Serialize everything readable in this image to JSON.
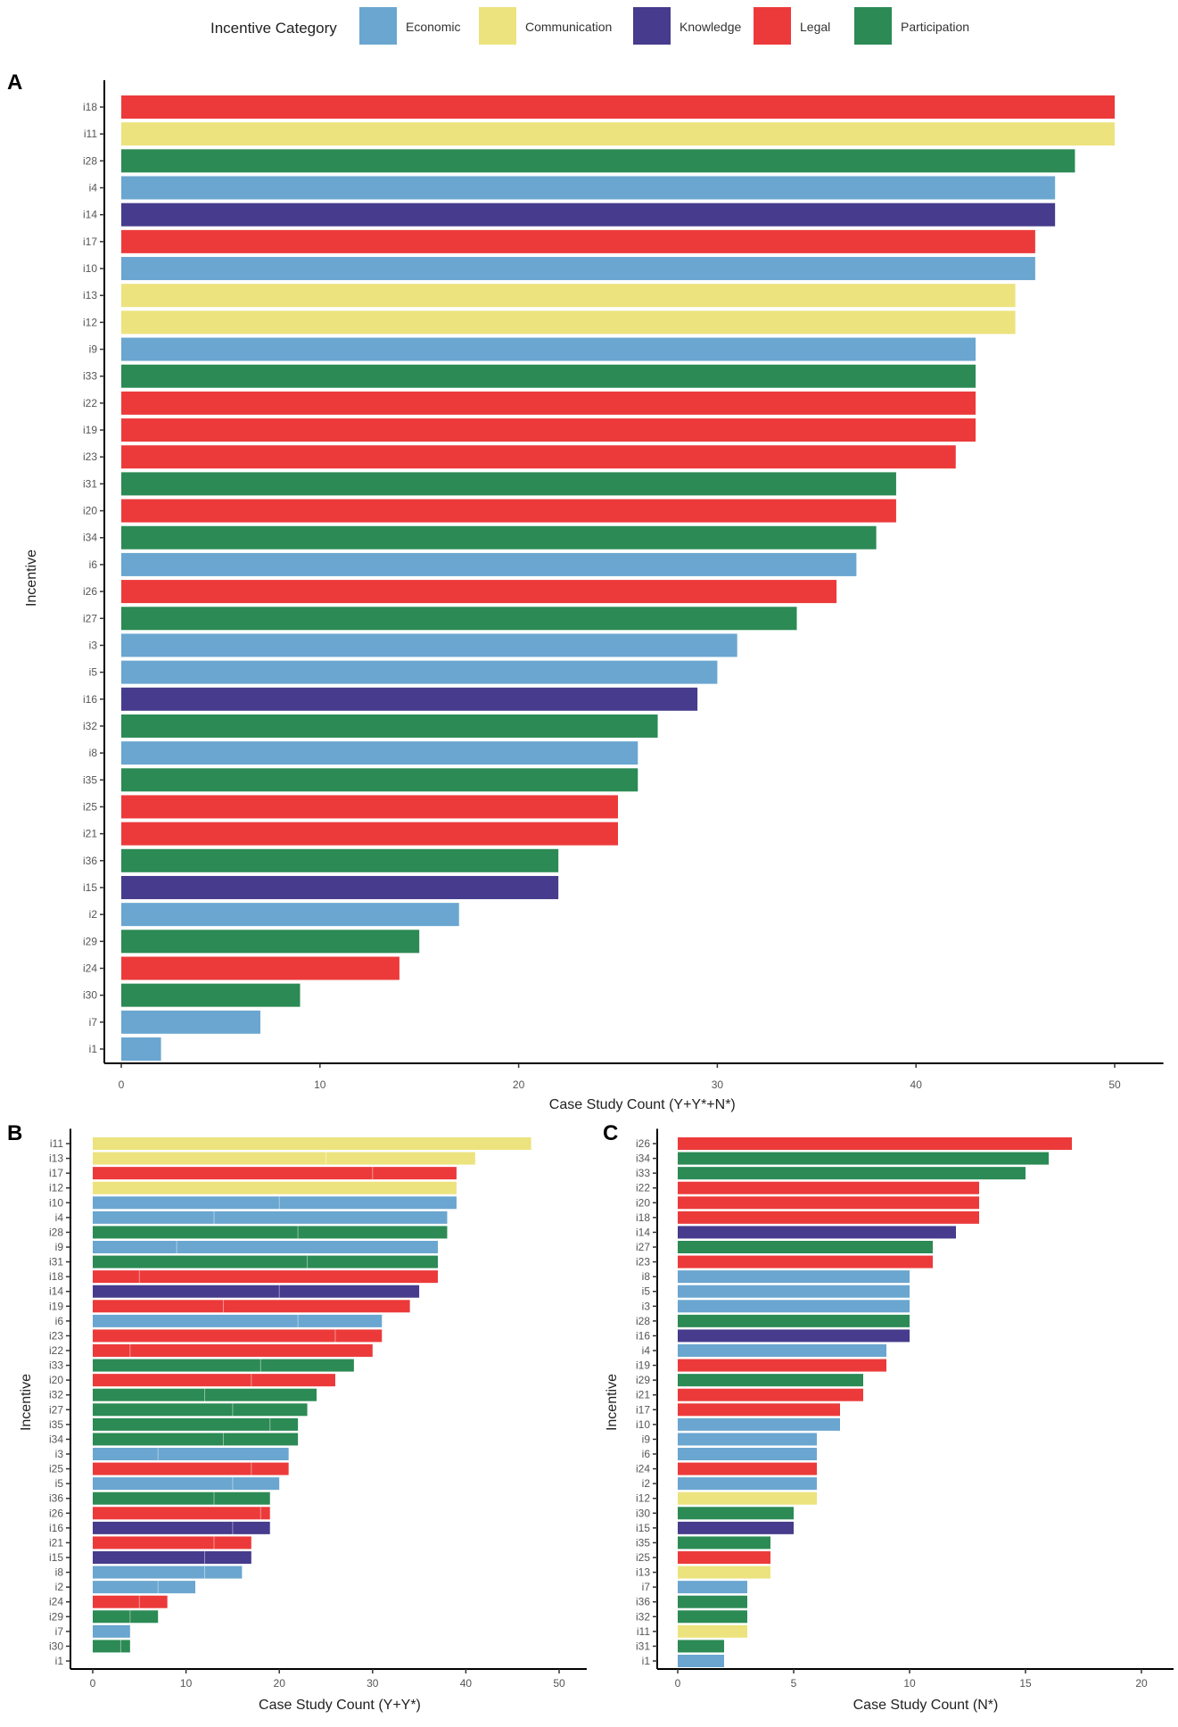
{
  "legend": {
    "title": "Incentive Category",
    "items": [
      {
        "label": "Economic",
        "color": "#6aa6d0"
      },
      {
        "label": "Communication",
        "color": "#ece37e"
      },
      {
        "label": "Knowledge",
        "color": "#463b8c"
      },
      {
        "label": "Legal",
        "color": "#ec3a3a"
      },
      {
        "label": "Participation",
        "color": "#2c8a55"
      }
    ]
  },
  "category_of": {
    "i1": "Economic",
    "i2": "Economic",
    "i3": "Economic",
    "i4": "Economic",
    "i5": "Economic",
    "i6": "Economic",
    "i7": "Economic",
    "i8": "Economic",
    "i9": "Economic",
    "i10": "Economic",
    "i11": "Communication",
    "i12": "Communication",
    "i13": "Communication",
    "i14": "Knowledge",
    "i15": "Knowledge",
    "i16": "Knowledge",
    "i17": "Legal",
    "i18": "Legal",
    "i19": "Legal",
    "i20": "Legal",
    "i21": "Legal",
    "i22": "Legal",
    "i23": "Legal",
    "i24": "Legal",
    "i25": "Legal",
    "i26": "Legal",
    "i27": "Participation",
    "i28": "Participation",
    "i29": "Participation",
    "i30": "Participation",
    "i31": "Participation",
    "i32": "Participation",
    "i33": "Participation",
    "i34": "Participation",
    "i35": "Participation",
    "i36": "Participation"
  },
  "chart_data": [
    {
      "panel": "A",
      "type": "bar",
      "orientation": "horizontal",
      "xlabel": "Case Study Count (Y+Y*+N*)",
      "ylabel": "Incentive",
      "xlim": [
        0,
        52
      ],
      "xticks": [
        0,
        10,
        20,
        30,
        40,
        50
      ],
      "categories": [
        "i18",
        "i11",
        "i28",
        "i4",
        "i14",
        "i17",
        "i10",
        "i13",
        "i12",
        "i9",
        "i33",
        "i22",
        "i19",
        "i23",
        "i31",
        "i20",
        "i34",
        "i6",
        "i26",
        "i27",
        "i3",
        "i5",
        "i16",
        "i32",
        "i8",
        "i35",
        "i25",
        "i21",
        "i36",
        "i15",
        "i2",
        "i29",
        "i24",
        "i30",
        "i7",
        "i1"
      ],
      "values": [
        50,
        50,
        48,
        47,
        47,
        46,
        46,
        45,
        45,
        43,
        43,
        43,
        43,
        42,
        39,
        39,
        38,
        37,
        36,
        34,
        31,
        30,
        29,
        27,
        26,
        26,
        25,
        25,
        22,
        22,
        17,
        15,
        14,
        9,
        7,
        2
      ]
    },
    {
      "panel": "B",
      "type": "bar",
      "orientation": "horizontal",
      "xlabel": "Case Study Count (Y+Y*)",
      "ylabel": "Incentive",
      "xlim": [
        0,
        52
      ],
      "xticks": [
        0,
        10,
        20,
        30,
        40,
        50
      ],
      "categories": [
        "i11",
        "i13",
        "i17",
        "i12",
        "i10",
        "i4",
        "i28",
        "i9",
        "i31",
        "i18",
        "i14",
        "i19",
        "i6",
        "i23",
        "i22",
        "i33",
        "i20",
        "i32",
        "i27",
        "i35",
        "i34",
        "i3",
        "i25",
        "i5",
        "i36",
        "i26",
        "i16",
        "i21",
        "i15",
        "i8",
        "i2",
        "i24",
        "i29",
        "i7",
        "i30",
        "i1"
      ],
      "values": [
        47,
        41,
        39,
        39,
        39,
        38,
        38,
        37,
        37,
        37,
        35,
        34,
        31,
        31,
        30,
        28,
        26,
        24,
        23,
        22,
        22,
        21,
        21,
        20,
        19,
        19,
        19,
        17,
        17,
        16,
        11,
        8,
        7,
        4,
        4,
        0
      ],
      "segment_split": [
        null,
        25,
        30,
        null,
        20,
        13,
        22,
        9,
        23,
        5,
        20,
        14,
        22,
        26,
        4,
        18,
        17,
        12,
        15,
        19,
        14,
        7,
        17,
        15,
        13,
        18,
        15,
        13,
        12,
        12,
        7,
        5,
        4,
        null,
        3,
        null
      ]
    },
    {
      "panel": "C",
      "type": "bar",
      "orientation": "horizontal",
      "xlabel": "Case Study Count (N*)",
      "ylabel": "Incentive",
      "xlim": [
        0,
        21
      ],
      "xticks": [
        0,
        5,
        10,
        15,
        20
      ],
      "categories": [
        "i26",
        "i34",
        "i33",
        "i22",
        "i20",
        "i18",
        "i14",
        "i27",
        "i23",
        "i8",
        "i5",
        "i3",
        "i28",
        "i16",
        "i4",
        "i19",
        "i29",
        "i21",
        "i17",
        "i10",
        "i9",
        "i6",
        "i24",
        "i2",
        "i12",
        "i30",
        "i15",
        "i35",
        "i25",
        "i13",
        "i7",
        "i36",
        "i32",
        "i11",
        "i31",
        "i1"
      ],
      "values": [
        17,
        16,
        15,
        13,
        13,
        13,
        12,
        11,
        11,
        10,
        10,
        10,
        10,
        10,
        9,
        9,
        8,
        8,
        7,
        7,
        6,
        6,
        6,
        6,
        6,
        5,
        5,
        4,
        4,
        4,
        3,
        3,
        3,
        3,
        2,
        2
      ]
    }
  ]
}
